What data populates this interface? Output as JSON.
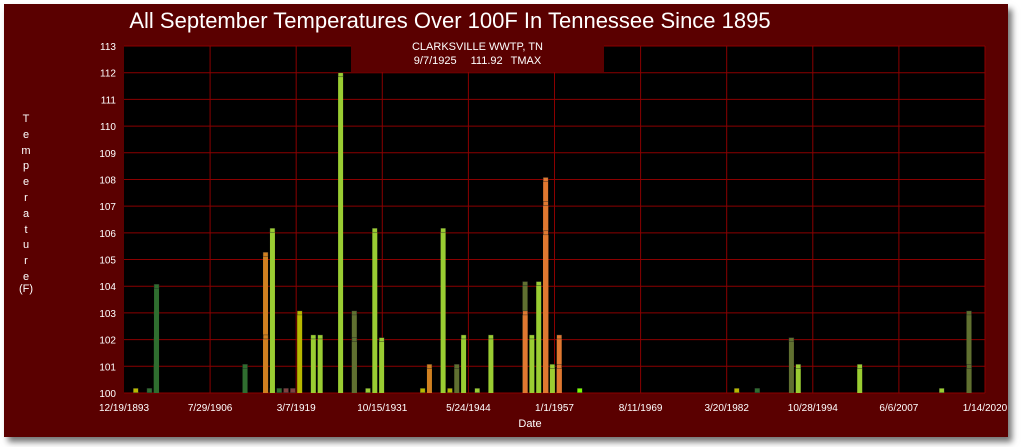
{
  "chart_data": {
    "type": "bar",
    "title": "All September Temperatures Over 100F In Tennessee Since 1895",
    "ylabel": "Temperature",
    "yunit": "(F)",
    "xlabel": "Date",
    "ylim": [
      100,
      113
    ],
    "yticks": [
      100,
      101,
      102,
      103,
      104,
      105,
      106,
      107,
      108,
      109,
      110,
      111,
      112,
      113
    ],
    "xlim": [
      "1893-12-19",
      "2020-01-14"
    ],
    "xtick_labels": [
      "12/19/1893",
      "7/29/1906",
      "3/7/1919",
      "10/15/1931",
      "5/24/1944",
      "1/1/1957",
      "8/11/1969",
      "3/20/1982",
      "10/28/1994",
      "6/6/2007",
      "1/14/2020"
    ],
    "xtick_dates": [
      "1893-12-19",
      "1906-07-29",
      "1919-03-07",
      "1931-10-15",
      "1944-05-24",
      "1957-01-01",
      "1969-08-11",
      "1982-03-20",
      "1994-10-28",
      "2007-06-06",
      "2020-01-14"
    ],
    "grid": true,
    "colors": {
      "background": "#5a0000",
      "plot": "#000000",
      "grid": "#8b0000",
      "text": "#ffffff"
    },
    "tooltip": {
      "station": "CLARKSVILLE WWTP, TN",
      "date": "9/7/1925",
      "value": "111.92",
      "element": "TMAX"
    },
    "series": [
      {
        "color": "#b8b800",
        "points": [
          [
            "1895-09-10",
            100.1
          ],
          [
            "1919-09-10",
            103
          ],
          [
            "1937-09-10",
            100.1
          ],
          [
            "1941-09-10",
            100.1
          ],
          [
            "1983-09-10",
            100.1
          ]
        ]
      },
      {
        "color": "#2f6e2f",
        "points": [
          [
            "1897-09-10",
            100.1
          ],
          [
            "1898-09-10",
            101
          ],
          [
            "1898-09-15",
            102
          ],
          [
            "1898-09-20",
            103
          ],
          [
            "1898-09-25",
            104
          ],
          [
            "1911-09-10",
            101
          ],
          [
            "1916-09-10",
            100.1
          ],
          [
            "1986-09-10",
            100.1
          ]
        ]
      },
      {
        "color": "#7f4040",
        "points": [
          [
            "1917-09-10",
            100.1
          ],
          [
            "1918-09-10",
            100.1
          ]
        ]
      },
      {
        "color": "#d08020",
        "points": [
          [
            "1914-09-10",
            105.2
          ],
          [
            "1914-09-15",
            102.1
          ],
          [
            "1938-09-10",
            101
          ]
        ]
      },
      {
        "color": "#9acd32",
        "points": [
          [
            "1915-09-10",
            100.1
          ],
          [
            "1915-09-15",
            106.1
          ],
          [
            "1921-09-10",
            102.1
          ],
          [
            "1922-09-10",
            102.1
          ],
          [
            "1925-09-07",
            111.92
          ],
          [
            "1929-09-10",
            100.1
          ],
          [
            "1930-09-10",
            106.1
          ],
          [
            "1931-09-10",
            102
          ],
          [
            "1940-09-10",
            106.1
          ],
          [
            "1943-09-10",
            102.1
          ],
          [
            "1945-09-10",
            100.1
          ],
          [
            "1947-09-10",
            102.1
          ],
          [
            "1953-09-10",
            102.1
          ],
          [
            "1954-09-10",
            104.1
          ],
          [
            "1955-09-10",
            106.1
          ],
          [
            "1956-09-10",
            101
          ],
          [
            "1992-09-10",
            101
          ],
          [
            "2001-09-10",
            101
          ],
          [
            "2013-09-10",
            100.1
          ]
        ]
      },
      {
        "color": "#607030",
        "points": [
          [
            "1927-09-10",
            103
          ],
          [
            "1927-09-15",
            102
          ],
          [
            "1942-09-10",
            101
          ],
          [
            "1952-09-10",
            104.1
          ],
          [
            "1991-09-10",
            102
          ],
          [
            "2017-09-10",
            103
          ],
          [
            "2017-09-15",
            101
          ]
        ]
      },
      {
        "color": "#e07830",
        "points": [
          [
            "1952-09-15",
            103
          ],
          [
            "1955-09-15",
            108
          ],
          [
            "1955-09-20",
            107.1
          ],
          [
            "1955-09-25",
            106
          ],
          [
            "1957-09-10",
            102.1
          ],
          [
            "1957-09-15",
            101
          ]
        ]
      },
      {
        "color": "#7cfc00",
        "points": [
          [
            "1960-09-10",
            100.1
          ]
        ]
      }
    ]
  }
}
